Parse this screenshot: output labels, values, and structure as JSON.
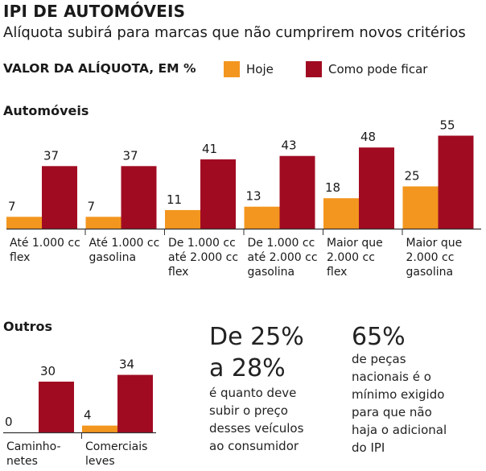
{
  "header": {
    "title": "IPI DE AUTOMÓVEIS",
    "subtitle": "Alíquota subirá para marcas que não cumprirem novos critérios",
    "valor_label": "VALOR DA ALÍQUOTA, EM %"
  },
  "legend": {
    "hoje": "Hoje",
    "como_pode_ficar": "Como pode ficar"
  },
  "colors": {
    "hoje": "#f3961f",
    "como_pode_ficar": "#a10b22",
    "baseline": "#333333"
  },
  "chart_data": [
    {
      "type": "bar",
      "title": "Automóveis",
      "categories": [
        [
          "Até 1.000 cc",
          "flex"
        ],
        [
          "Até 1.000 cc",
          "gasolina"
        ],
        [
          "De 1.000 cc",
          "até 2.000 cc",
          "flex"
        ],
        [
          "De 1.000 cc",
          "até 2.000 cc",
          "gasolina"
        ],
        [
          "Maior que",
          "2.000 cc",
          "flex"
        ],
        [
          "Maior que",
          "2.000 cc",
          "gasolina"
        ]
      ],
      "series": [
        {
          "name": "Hoje",
          "values": [
            7,
            7,
            11,
            13,
            18,
            25
          ]
        },
        {
          "name": "Como pode ficar",
          "values": [
            37,
            37,
            41,
            43,
            48,
            55
          ]
        }
      ],
      "ylim": [
        0,
        55
      ],
      "grid": false,
      "legend": "top"
    },
    {
      "type": "bar",
      "title": "Outros",
      "categories": [
        [
          "Caminho-",
          "netes"
        ],
        [
          "Comerciais",
          "leves"
        ]
      ],
      "series": [
        {
          "name": "Hoje",
          "values": [
            0,
            4
          ]
        },
        {
          "name": "Como pode ficar",
          "values": [
            30,
            34
          ]
        }
      ],
      "ylim": [
        0,
        55
      ],
      "grid": false
    }
  ],
  "notes": [
    {
      "big": [
        "De 25%",
        "a 28%"
      ],
      "text": [
        "é quanto deve",
        "subir o preço",
        "desses veículos",
        "ao consumidor"
      ]
    },
    {
      "big": [
        "65%"
      ],
      "text": [
        "de peças",
        "nacionais é o",
        "mínimo exigido",
        "para que não",
        "haja o adicional",
        "do IPI"
      ]
    }
  ]
}
